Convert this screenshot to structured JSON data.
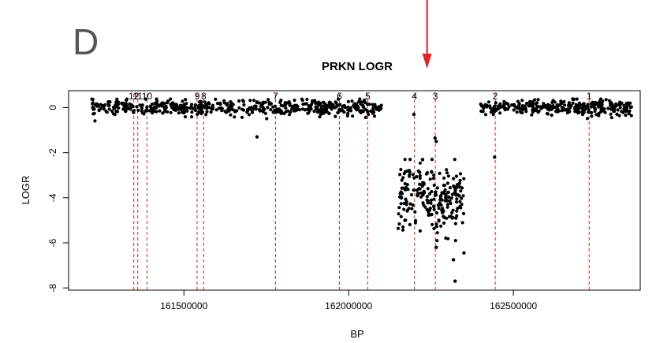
{
  "panel_label": "D",
  "chart_data": {
    "type": "scatter",
    "title": "PRKN LOGR",
    "xlabel": "BP",
    "ylabel": "LOGR",
    "xlim": [
      161150000,
      162885000
    ],
    "ylim": [
      -8.1,
      0.75
    ],
    "x_ticks": [
      161500000,
      162000000,
      162500000
    ],
    "x_tick_labels": [
      "161500000",
      "162000000",
      "162500000"
    ],
    "y_ticks": [
      0,
      -2,
      -4,
      -6,
      -8
    ],
    "y_tick_labels": [
      "0",
      "-2",
      "-4",
      "-6",
      "-8"
    ],
    "grid": false,
    "marker_color": "#000000",
    "exon_line_color": "#e8201f",
    "arrow_color": "#e8201f",
    "exons": [
      {
        "label": "12",
        "bp": 161348000
      },
      {
        "label": "11",
        "bp": 161360000
      },
      {
        "label": "10",
        "bp": 161388000
      },
      {
        "label": "9",
        "bp": 161540000
      },
      {
        "label": "8",
        "bp": 161560000
      },
      {
        "label": "7",
        "bp": 161778000
      },
      {
        "label": "6",
        "bp": 161972000
      },
      {
        "label": "5",
        "bp": 162058000
      },
      {
        "label": "4",
        "bp": 162200000
      },
      {
        "label": "3",
        "bp": 162263000
      },
      {
        "label": "2",
        "bp": 162445000
      },
      {
        "label": "1",
        "bp": 162730000
      }
    ],
    "arrow_bp": 162238000,
    "series": [
      {
        "segment": "normal-left",
        "x_range": [
          161220000,
          162100000
        ],
        "y_mean": 0.0,
        "y_sd": 0.17,
        "n": 520
      },
      {
        "segment": "deleted",
        "x_range": [
          162150000,
          162350000
        ],
        "y_mean": -4.0,
        "y_sd": 0.75,
        "n": 230
      },
      {
        "segment": "normal-right",
        "x_range": [
          162400000,
          162860000
        ],
        "y_mean": 0.0,
        "y_sd": 0.17,
        "n": 300
      }
    ],
    "outliers": [
      {
        "x": 161722000,
        "y": -1.3
      },
      {
        "x": 162443000,
        "y": -2.2
      },
      {
        "x": 162262000,
        "y": -1.35
      },
      {
        "x": 162266000,
        "y": -1.5
      },
      {
        "x": 162318000,
        "y": -6.75
      },
      {
        "x": 162323000,
        "y": -7.7
      },
      {
        "x": 162350000,
        "y": -6.45
      },
      {
        "x": 162266000,
        "y": -6.2
      },
      {
        "x": 162198000,
        "y": -0.3
      }
    ]
  }
}
